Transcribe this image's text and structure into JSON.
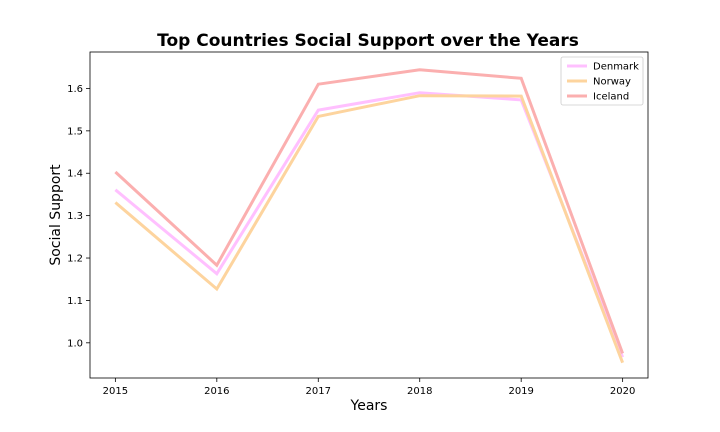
{
  "chart_data": {
    "type": "line",
    "title": "Top Countries Social Support over the Years",
    "xlabel": "Years",
    "ylabel": "Social Support",
    "x": [
      2015,
      2016,
      2017,
      2018,
      2019,
      2020
    ],
    "x_ticks": [
      "2015",
      "2016",
      "2017",
      "2018",
      "2019",
      "2020"
    ],
    "y_ticks": [
      "1.0",
      "1.1",
      "1.2",
      "1.3",
      "1.4",
      "1.5",
      "1.6"
    ],
    "xlim": [
      2014.75,
      2020.25
    ],
    "ylim": [
      0.917,
      1.686
    ],
    "grid": false,
    "legend_position": "top-right",
    "series": [
      {
        "name": "Denmark",
        "color": "#ffc0ff",
        "values": [
          1.361,
          1.163,
          1.549,
          1.59,
          1.573,
          0.966
        ]
      },
      {
        "name": "Norway",
        "color": "#fdd49e",
        "values": [
          1.331,
          1.127,
          1.534,
          1.583,
          1.582,
          0.953
        ]
      },
      {
        "name": "Iceland",
        "color": "#fbafaf",
        "values": [
          1.403,
          1.183,
          1.61,
          1.644,
          1.624,
          0.975
        ]
      }
    ]
  }
}
